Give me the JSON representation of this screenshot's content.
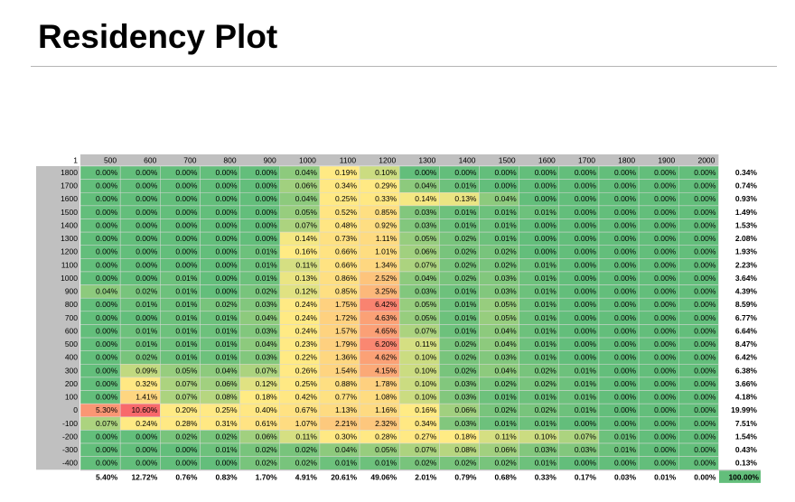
{
  "title": "Residency Plot",
  "chart_data": {
    "type": "heatmap",
    "title": "Residency Plot",
    "corner_label": "1",
    "x": [
      "500",
      "600",
      "700",
      "800",
      "900",
      "1000",
      "1100",
      "1200",
      "1300",
      "1400",
      "1500",
      "1600",
      "1700",
      "1800",
      "1900",
      "2000"
    ],
    "y": [
      "1800",
      "1700",
      "1600",
      "1500",
      "1400",
      "1300",
      "1200",
      "1100",
      "1000",
      "900",
      "800",
      "700",
      "600",
      "500",
      "400",
      "300",
      "200",
      "100",
      "0",
      "-100",
      "-200",
      "-300",
      "-400"
    ],
    "values": [
      [
        "0.00%",
        "0.00%",
        "0.00%",
        "0.00%",
        "0.00%",
        "0.04%",
        "0.19%",
        "0.10%",
        "0.00%",
        "0.00%",
        "0.00%",
        "0.00%",
        "0.00%",
        "0.00%",
        "0.00%",
        "0.00%"
      ],
      [
        "0.00%",
        "0.00%",
        "0.00%",
        "0.00%",
        "0.00%",
        "0.06%",
        "0.34%",
        "0.29%",
        "0.04%",
        "0.01%",
        "0.00%",
        "0.00%",
        "0.00%",
        "0.00%",
        "0.00%",
        "0.00%"
      ],
      [
        "0.00%",
        "0.00%",
        "0.00%",
        "0.00%",
        "0.00%",
        "0.04%",
        "0.25%",
        "0.33%",
        "0.14%",
        "0.13%",
        "0.04%",
        "0.00%",
        "0.00%",
        "0.00%",
        "0.00%",
        "0.00%"
      ],
      [
        "0.00%",
        "0.00%",
        "0.00%",
        "0.00%",
        "0.00%",
        "0.05%",
        "0.52%",
        "0.85%",
        "0.03%",
        "0.01%",
        "0.01%",
        "0.01%",
        "0.00%",
        "0.00%",
        "0.00%",
        "0.00%"
      ],
      [
        "0.00%",
        "0.00%",
        "0.00%",
        "0.00%",
        "0.00%",
        "0.07%",
        "0.48%",
        "0.92%",
        "0.03%",
        "0.01%",
        "0.01%",
        "0.00%",
        "0.00%",
        "0.00%",
        "0.00%",
        "0.00%"
      ],
      [
        "0.00%",
        "0.00%",
        "0.00%",
        "0.00%",
        "0.00%",
        "0.14%",
        "0.73%",
        "1.11%",
        "0.05%",
        "0.02%",
        "0.01%",
        "0.00%",
        "0.00%",
        "0.00%",
        "0.00%",
        "0.00%"
      ],
      [
        "0.00%",
        "0.00%",
        "0.00%",
        "0.00%",
        "0.01%",
        "0.16%",
        "0.66%",
        "1.01%",
        "0.06%",
        "0.02%",
        "0.02%",
        "0.00%",
        "0.00%",
        "0.00%",
        "0.00%",
        "0.00%"
      ],
      [
        "0.00%",
        "0.00%",
        "0.00%",
        "0.00%",
        "0.01%",
        "0.11%",
        "0.66%",
        "1.34%",
        "0.07%",
        "0.02%",
        "0.02%",
        "0.01%",
        "0.00%",
        "0.00%",
        "0.00%",
        "0.00%"
      ],
      [
        "0.00%",
        "0.00%",
        "0.01%",
        "0.00%",
        "0.01%",
        "0.13%",
        "0.86%",
        "2.52%",
        "0.04%",
        "0.02%",
        "0.03%",
        "0.01%",
        "0.00%",
        "0.00%",
        "0.00%",
        "0.00%"
      ],
      [
        "0.04%",
        "0.02%",
        "0.01%",
        "0.00%",
        "0.02%",
        "0.12%",
        "0.85%",
        "3.25%",
        "0.03%",
        "0.01%",
        "0.03%",
        "0.01%",
        "0.00%",
        "0.00%",
        "0.00%",
        "0.00%"
      ],
      [
        "0.00%",
        "0.01%",
        "0.01%",
        "0.02%",
        "0.03%",
        "0.24%",
        "1.75%",
        "6.42%",
        "0.05%",
        "0.01%",
        "0.05%",
        "0.01%",
        "0.00%",
        "0.00%",
        "0.00%",
        "0.00%"
      ],
      [
        "0.00%",
        "0.00%",
        "0.01%",
        "0.01%",
        "0.04%",
        "0.24%",
        "1.72%",
        "4.63%",
        "0.05%",
        "0.01%",
        "0.05%",
        "0.01%",
        "0.00%",
        "0.00%",
        "0.00%",
        "0.00%"
      ],
      [
        "0.00%",
        "0.01%",
        "0.01%",
        "0.01%",
        "0.03%",
        "0.24%",
        "1.57%",
        "4.65%",
        "0.07%",
        "0.01%",
        "0.04%",
        "0.01%",
        "0.00%",
        "0.00%",
        "0.00%",
        "0.00%"
      ],
      [
        "0.00%",
        "0.01%",
        "0.01%",
        "0.01%",
        "0.04%",
        "0.23%",
        "1.79%",
        "6.20%",
        "0.11%",
        "0.02%",
        "0.04%",
        "0.01%",
        "0.00%",
        "0.00%",
        "0.00%",
        "0.00%"
      ],
      [
        "0.00%",
        "0.02%",
        "0.01%",
        "0.01%",
        "0.03%",
        "0.22%",
        "1.36%",
        "4.62%",
        "0.10%",
        "0.02%",
        "0.03%",
        "0.01%",
        "0.00%",
        "0.00%",
        "0.00%",
        "0.00%"
      ],
      [
        "0.00%",
        "0.09%",
        "0.05%",
        "0.04%",
        "0.07%",
        "0.26%",
        "1.54%",
        "4.15%",
        "0.10%",
        "0.02%",
        "0.04%",
        "0.02%",
        "0.01%",
        "0.00%",
        "0.00%",
        "0.00%"
      ],
      [
        "0.00%",
        "0.32%",
        "0.07%",
        "0.06%",
        "0.12%",
        "0.25%",
        "0.88%",
        "1.78%",
        "0.10%",
        "0.03%",
        "0.02%",
        "0.02%",
        "0.01%",
        "0.00%",
        "0.00%",
        "0.00%"
      ],
      [
        "0.00%",
        "1.41%",
        "0.07%",
        "0.08%",
        "0.18%",
        "0.42%",
        "0.77%",
        "1.08%",
        "0.10%",
        "0.03%",
        "0.01%",
        "0.01%",
        "0.01%",
        "0.00%",
        "0.00%",
        "0.00%"
      ],
      [
        "5.30%",
        "10.60%",
        "0.20%",
        "0.25%",
        "0.40%",
        "0.67%",
        "1.13%",
        "1.16%",
        "0.16%",
        "0.06%",
        "0.02%",
        "0.02%",
        "0.01%",
        "0.00%",
        "0.00%",
        "0.00%"
      ],
      [
        "0.07%",
        "0.24%",
        "0.28%",
        "0.31%",
        "0.61%",
        "1.07%",
        "2.21%",
        "2.32%",
        "0.34%",
        "0.03%",
        "0.01%",
        "0.01%",
        "0.00%",
        "0.00%",
        "0.00%",
        "0.00%"
      ],
      [
        "0.00%",
        "0.00%",
        "0.02%",
        "0.02%",
        "0.06%",
        "0.11%",
        "0.30%",
        "0.28%",
        "0.27%",
        "0.18%",
        "0.11%",
        "0.10%",
        "0.07%",
        "0.01%",
        "0.00%",
        "0.00%"
      ],
      [
        "0.00%",
        "0.00%",
        "0.00%",
        "0.01%",
        "0.02%",
        "0.02%",
        "0.04%",
        "0.05%",
        "0.07%",
        "0.08%",
        "0.06%",
        "0.03%",
        "0.03%",
        "0.01%",
        "0.00%",
        "0.00%"
      ],
      [
        "0.00%",
        "0.00%",
        "0.00%",
        "0.00%",
        "0.02%",
        "0.02%",
        "0.01%",
        "0.01%",
        "0.02%",
        "0.02%",
        "0.02%",
        "0.01%",
        "0.00%",
        "0.00%",
        "0.00%",
        "0.00%"
      ]
    ],
    "row_totals": [
      "0.34%",
      "0.74%",
      "0.93%",
      "1.49%",
      "1.53%",
      "2.08%",
      "1.93%",
      "2.23%",
      "3.64%",
      "4.39%",
      "8.59%",
      "6.77%",
      "6.64%",
      "8.47%",
      "6.42%",
      "6.38%",
      "3.66%",
      "4.18%",
      "19.99%",
      "7.51%",
      "1.54%",
      "0.43%",
      "0.13%"
    ],
    "col_totals": [
      "5.40%",
      "12.72%",
      "0.76%",
      "0.83%",
      "1.70%",
      "4.91%",
      "20.61%",
      "49.06%",
      "2.01%",
      "0.79%",
      "0.68%",
      "0.33%",
      "0.17%",
      "0.03%",
      "0.01%",
      "0.00%"
    ],
    "grand_total": "100.00%",
    "color_scale": {
      "low": "#63be7b",
      "mid": "#ffeb84",
      "high": "#f8696b"
    },
    "header_fill": "#c0c0c0",
    "grand_total_fill": "#63be7b"
  }
}
